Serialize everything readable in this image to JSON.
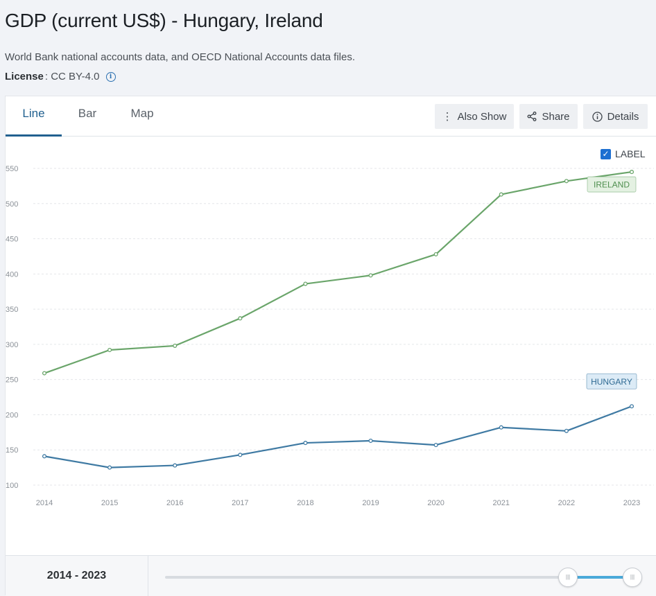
{
  "header": {
    "title": "GDP (current US$) - Hungary, Ireland",
    "subtitle": "World Bank national accounts data, and OECD National Accounts data files.",
    "license_label": "License",
    "license_value": ": CC BY-4.0",
    "info_icon": "info-icon"
  },
  "tabs": [
    {
      "label": "Line",
      "active": true
    },
    {
      "label": "Bar",
      "active": false
    },
    {
      "label": "Map",
      "active": false
    }
  ],
  "toolbar": {
    "also_show": {
      "label": "Also Show",
      "icon": "vertical-dots-icon"
    },
    "share": {
      "label": "Share",
      "icon": "share-icon"
    },
    "details": {
      "label": "Details",
      "icon": "info-circle-icon"
    }
  },
  "label_toggle": {
    "label": "LABEL",
    "checked": true
  },
  "colors": {
    "ireland": "#6aa56a",
    "hungary": "#3f7aa3",
    "ireland_tag_bg": "#e4f1e2",
    "hungary_tag_bg": "#dcebf6",
    "grid": "#e4e6e9",
    "tick": "#8a9097",
    "accent": "#21608f"
  },
  "chart_data": {
    "type": "line",
    "x": [
      "2014",
      "2015",
      "2016",
      "2017",
      "2018",
      "2019",
      "2020",
      "2021",
      "2022",
      "2023"
    ],
    "series": [
      {
        "name": "IRELAND",
        "values": [
          259,
          292,
          298,
          337,
          386,
          398,
          428,
          513,
          532,
          545
        ]
      },
      {
        "name": "HUNGARY",
        "values": [
          141,
          125,
          128,
          143,
          160,
          163,
          157,
          182,
          177,
          212
        ]
      }
    ],
    "ylim": [
      100,
      550
    ],
    "yticks": [
      "100",
      "150",
      "200",
      "250",
      "300",
      "350",
      "400",
      "450",
      "500",
      "550"
    ],
    "grid": true,
    "series_labels": true
  },
  "range": {
    "label": "2014 - 2023",
    "handle_glyph": "|||",
    "selected_start": "2014",
    "selected_end": "2023"
  }
}
